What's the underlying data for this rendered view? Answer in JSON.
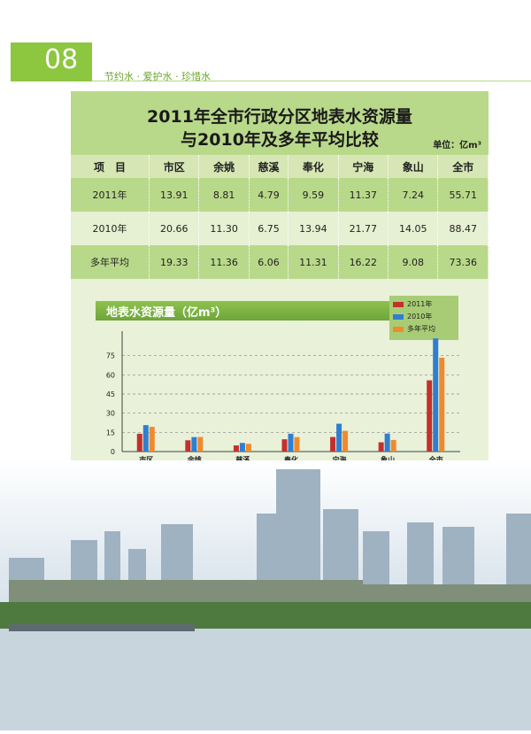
{
  "page_number": "08",
  "slogan": "节约水 · 爱护水 · 珍惜水",
  "title_line1": "2011年全市行政分区地表水资源量",
  "title_line2": "与2010年及多年平均比较",
  "unit_label": "单位：亿m³",
  "table": {
    "headers": [
      "项　目",
      "市区",
      "余姚",
      "慈溪",
      "奉化",
      "宁海",
      "象山",
      "全市"
    ],
    "rows": [
      [
        "2011年",
        "13.91",
        "8.81",
        "4.79",
        "9.59",
        "11.37",
        "7.24",
        "55.71"
      ],
      [
        "2010年",
        "20.66",
        "11.30",
        "6.75",
        "13.94",
        "21.77",
        "14.05",
        "88.47"
      ],
      [
        "多年平均",
        "19.33",
        "11.36",
        "6.06",
        "11.31",
        "16.22",
        "9.08",
        "73.36"
      ]
    ]
  },
  "chart_data": {
    "type": "bar",
    "title": "地表水资源量（亿m³）",
    "categories": [
      "市区",
      "余姚",
      "慈溪",
      "奉化",
      "宁海",
      "象山",
      "全市"
    ],
    "series": [
      {
        "name": "2011年",
        "values": [
          13.91,
          8.81,
          4.79,
          9.59,
          11.37,
          7.24,
          55.71
        ],
        "color": "#c4302b"
      },
      {
        "name": "2010年",
        "values": [
          20.66,
          11.3,
          6.75,
          13.94,
          21.77,
          14.05,
          88.47
        ],
        "color": "#2f7fd1"
      },
      {
        "name": "多年平均",
        "values": [
          19.33,
          11.36,
          6.06,
          11.31,
          16.22,
          9.08,
          73.36
        ],
        "color": "#f08a2e"
      }
    ],
    "yticks": [
      0,
      15,
      30,
      45,
      60,
      75
    ],
    "ylim": [
      0,
      90
    ],
    "grid": true,
    "legend": "top-right"
  }
}
